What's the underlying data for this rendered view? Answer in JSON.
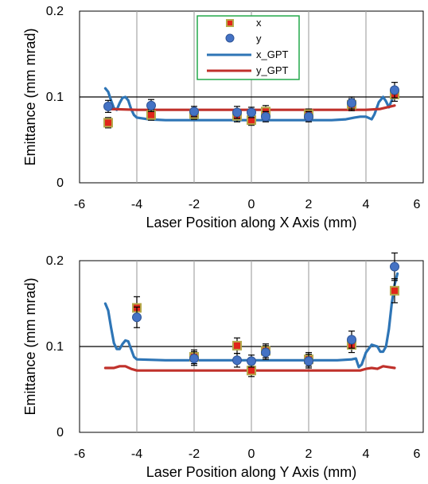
{
  "colors": {
    "x_marker_fill": "#e0251a",
    "x_marker_edge": "#b5a84a",
    "y_marker_fill": "#4472c4",
    "y_marker_edge": "#2f5597",
    "x_gpt_line": "#2e75b6",
    "y_gpt_line": "#c0312b",
    "legend_border": "#22a84a",
    "error_bar": "#000000",
    "gridline_minor": "#a6a6a6",
    "gridline_major": "#000000"
  },
  "chart_data": [
    {
      "type": "scatter",
      "xlabel": "Laser Position along X Axis (mm)",
      "ylabel": "Emittance (mm mrad)",
      "xlim": [
        -6,
        6
      ],
      "ylim": [
        0,
        0.2
      ],
      "xticks": [
        "-6",
        "-4",
        "-2",
        "0",
        "2",
        "4",
        "6"
      ],
      "yticks": [
        "0",
        "0.1",
        "0.2"
      ],
      "grid": "vertical lines at x ticks, horizontal line at 0.1",
      "legend": {
        "position": "top-center",
        "entries": [
          "x",
          "y",
          "x_GPT",
          "y_GPT"
        ]
      },
      "series": [
        {
          "name": "x",
          "kind": "marker-square",
          "points": [
            {
              "x": -5.0,
              "y": 0.07,
              "err": 0.006
            },
            {
              "x": -3.5,
              "y": 0.079,
              "err": 0.006
            },
            {
              "x": -2.0,
              "y": 0.08,
              "err": 0.006
            },
            {
              "x": -0.5,
              "y": 0.078,
              "err": 0.007
            },
            {
              "x": 0.0,
              "y": 0.073,
              "err": 0.006
            },
            {
              "x": 0.5,
              "y": 0.083,
              "err": 0.007
            },
            {
              "x": 2.0,
              "y": 0.08,
              "err": 0.006
            },
            {
              "x": 3.5,
              "y": 0.091,
              "err": 0.007
            },
            {
              "x": 5.0,
              "y": 0.103,
              "err": 0.008
            }
          ]
        },
        {
          "name": "y",
          "kind": "marker-circle",
          "points": [
            {
              "x": -5.0,
              "y": 0.089,
              "err": 0.007
            },
            {
              "x": -3.5,
              "y": 0.09,
              "err": 0.007
            },
            {
              "x": -2.0,
              "y": 0.083,
              "err": 0.006
            },
            {
              "x": -0.5,
              "y": 0.082,
              "err": 0.007
            },
            {
              "x": 0.0,
              "y": 0.082,
              "err": 0.006
            },
            {
              "x": 0.5,
              "y": 0.077,
              "err": 0.006
            },
            {
              "x": 2.0,
              "y": 0.077,
              "err": 0.006
            },
            {
              "x": 3.5,
              "y": 0.093,
              "err": 0.007
            },
            {
              "x": 5.0,
              "y": 0.108,
              "err": 0.009
            }
          ]
        },
        {
          "name": "x_GPT",
          "kind": "line",
          "points": [
            {
              "x": -5.1,
              "y": 0.11
            },
            {
              "x": -5.0,
              "y": 0.106
            },
            {
              "x": -4.9,
              "y": 0.096
            },
            {
              "x": -4.8,
              "y": 0.087
            },
            {
              "x": -4.7,
              "y": 0.085
            },
            {
              "x": -4.6,
              "y": 0.093
            },
            {
              "x": -4.5,
              "y": 0.099
            },
            {
              "x": -4.4,
              "y": 0.1
            },
            {
              "x": -4.3,
              "y": 0.096
            },
            {
              "x": -4.2,
              "y": 0.086
            },
            {
              "x": -4.1,
              "y": 0.079
            },
            {
              "x": -4.0,
              "y": 0.076
            },
            {
              "x": -3.6,
              "y": 0.074
            },
            {
              "x": -3.0,
              "y": 0.073
            },
            {
              "x": -2.0,
              "y": 0.073
            },
            {
              "x": -1.0,
              "y": 0.073
            },
            {
              "x": 0.0,
              "y": 0.073
            },
            {
              "x": 1.0,
              "y": 0.073
            },
            {
              "x": 2.0,
              "y": 0.073
            },
            {
              "x": 2.8,
              "y": 0.073
            },
            {
              "x": 3.3,
              "y": 0.074
            },
            {
              "x": 3.6,
              "y": 0.076
            },
            {
              "x": 3.8,
              "y": 0.077
            },
            {
              "x": 4.0,
              "y": 0.077
            },
            {
              "x": 4.2,
              "y": 0.074
            },
            {
              "x": 4.3,
              "y": 0.08
            },
            {
              "x": 4.45,
              "y": 0.094
            },
            {
              "x": 4.6,
              "y": 0.1
            },
            {
              "x": 4.7,
              "y": 0.095
            },
            {
              "x": 4.8,
              "y": 0.088
            },
            {
              "x": 4.9,
              "y": 0.096
            },
            {
              "x": 5.0,
              "y": 0.106
            }
          ]
        },
        {
          "name": "y_GPT",
          "kind": "line",
          "points": [
            {
              "x": -5.1,
              "y": 0.087
            },
            {
              "x": -5.0,
              "y": 0.086
            },
            {
              "x": -4.0,
              "y": 0.085
            },
            {
              "x": -2.0,
              "y": 0.085
            },
            {
              "x": 0.0,
              "y": 0.085
            },
            {
              "x": 2.0,
              "y": 0.085
            },
            {
              "x": 4.0,
              "y": 0.085
            },
            {
              "x": 4.5,
              "y": 0.086
            },
            {
              "x": 5.0,
              "y": 0.09
            }
          ]
        }
      ]
    },
    {
      "type": "scatter",
      "xlabel": "Laser Position along Y Axis (mm)",
      "ylabel": "Emittance (mm mrad)",
      "xlim": [
        -6,
        6
      ],
      "ylim": [
        0,
        0.2
      ],
      "xticks": [
        "-6",
        "-4",
        "-2",
        "0",
        "2",
        "4",
        "6"
      ],
      "yticks": [
        "0",
        "0.1",
        "0.2"
      ],
      "grid": "vertical lines at x ticks, horizontal line at 0.1",
      "series": [
        {
          "name": "x",
          "kind": "marker-square",
          "points": [
            {
              "x": -4.0,
              "y": 0.145,
              "err": 0.013
            },
            {
              "x": -2.0,
              "y": 0.088,
              "err": 0.008
            },
            {
              "x": -0.5,
              "y": 0.101,
              "err": 0.009
            },
            {
              "x": 0.0,
              "y": 0.072,
              "err": 0.007
            },
            {
              "x": 0.5,
              "y": 0.095,
              "err": 0.008
            },
            {
              "x": 2.0,
              "y": 0.085,
              "err": 0.008
            },
            {
              "x": 3.5,
              "y": 0.102,
              "err": 0.009
            },
            {
              "x": 5.0,
              "y": 0.165,
              "err": 0.014
            }
          ]
        },
        {
          "name": "y",
          "kind": "marker-circle",
          "points": [
            {
              "x": -4.0,
              "y": 0.134,
              "err": 0.012
            },
            {
              "x": -2.0,
              "y": 0.086,
              "err": 0.008
            },
            {
              "x": -0.5,
              "y": 0.084,
              "err": 0.008
            },
            {
              "x": 0.0,
              "y": 0.083,
              "err": 0.007
            },
            {
              "x": 0.5,
              "y": 0.093,
              "err": 0.008
            },
            {
              "x": 2.0,
              "y": 0.083,
              "err": 0.008
            },
            {
              "x": 3.5,
              "y": 0.108,
              "err": 0.01
            },
            {
              "x": 5.0,
              "y": 0.193,
              "err": 0.016
            }
          ]
        },
        {
          "name": "x_GPT",
          "kind": "line",
          "points": [
            {
              "x": -5.1,
              "y": 0.15
            },
            {
              "x": -5.0,
              "y": 0.142
            },
            {
              "x": -4.9,
              "y": 0.122
            },
            {
              "x": -4.8,
              "y": 0.104
            },
            {
              "x": -4.7,
              "y": 0.097
            },
            {
              "x": -4.6,
              "y": 0.097
            },
            {
              "x": -4.5,
              "y": 0.103
            },
            {
              "x": -4.4,
              "y": 0.107
            },
            {
              "x": -4.3,
              "y": 0.106
            },
            {
              "x": -4.2,
              "y": 0.097
            },
            {
              "x": -4.1,
              "y": 0.088
            },
            {
              "x": -4.0,
              "y": 0.085
            },
            {
              "x": -3.0,
              "y": 0.084
            },
            {
              "x": -2.0,
              "y": 0.084
            },
            {
              "x": 0.0,
              "y": 0.084
            },
            {
              "x": 2.0,
              "y": 0.084
            },
            {
              "x": 3.0,
              "y": 0.084
            },
            {
              "x": 3.5,
              "y": 0.085
            },
            {
              "x": 3.65,
              "y": 0.086
            },
            {
              "x": 3.75,
              "y": 0.076
            },
            {
              "x": 3.85,
              "y": 0.079
            },
            {
              "x": 4.0,
              "y": 0.093
            },
            {
              "x": 4.2,
              "y": 0.102
            },
            {
              "x": 4.4,
              "y": 0.1
            },
            {
              "x": 4.5,
              "y": 0.094
            },
            {
              "x": 4.6,
              "y": 0.094
            },
            {
              "x": 4.7,
              "y": 0.1
            },
            {
              "x": 4.8,
              "y": 0.12
            },
            {
              "x": 4.9,
              "y": 0.15
            },
            {
              "x": 5.0,
              "y": 0.172
            },
            {
              "x": 5.1,
              "y": 0.185
            }
          ]
        },
        {
          "name": "y_GPT",
          "kind": "line",
          "points": [
            {
              "x": -5.1,
              "y": 0.075
            },
            {
              "x": -4.8,
              "y": 0.075
            },
            {
              "x": -4.6,
              "y": 0.077
            },
            {
              "x": -4.4,
              "y": 0.077
            },
            {
              "x": -4.2,
              "y": 0.074
            },
            {
              "x": -4.0,
              "y": 0.072
            },
            {
              "x": -3.0,
              "y": 0.072
            },
            {
              "x": -1.0,
              "y": 0.072
            },
            {
              "x": 1.0,
              "y": 0.072
            },
            {
              "x": 3.0,
              "y": 0.072
            },
            {
              "x": 3.8,
              "y": 0.072
            },
            {
              "x": 4.0,
              "y": 0.074
            },
            {
              "x": 4.2,
              "y": 0.075
            },
            {
              "x": 4.4,
              "y": 0.074
            },
            {
              "x": 4.6,
              "y": 0.077
            },
            {
              "x": 4.8,
              "y": 0.076
            },
            {
              "x": 5.0,
              "y": 0.075
            }
          ]
        }
      ]
    }
  ]
}
